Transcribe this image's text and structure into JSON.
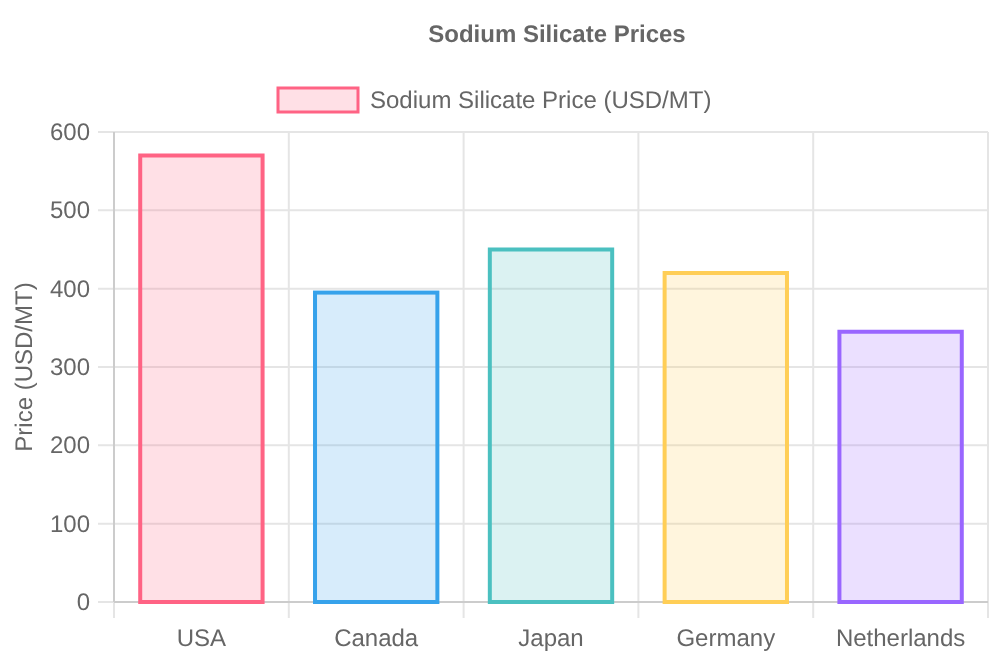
{
  "chart_data": {
    "type": "bar",
    "title": "Sodium Silicate Prices",
    "ylabel": "Price (USD/MT)",
    "categories": [
      "USA",
      "Canada",
      "Japan",
      "Germany",
      "Netherlands"
    ],
    "series": [
      {
        "name": "Sodium Silicate Price (USD/MT)",
        "values": [
          570,
          395,
          450,
          420,
          345
        ],
        "colors": [
          "#ff6384",
          "#36a2eb",
          "#4bc0c0",
          "#ffce56",
          "#9966ff"
        ]
      }
    ],
    "ylim": [
      0,
      600
    ],
    "yticks": [
      0,
      100,
      200,
      300,
      400,
      500,
      600
    ],
    "grid": true,
    "legend": "top"
  }
}
